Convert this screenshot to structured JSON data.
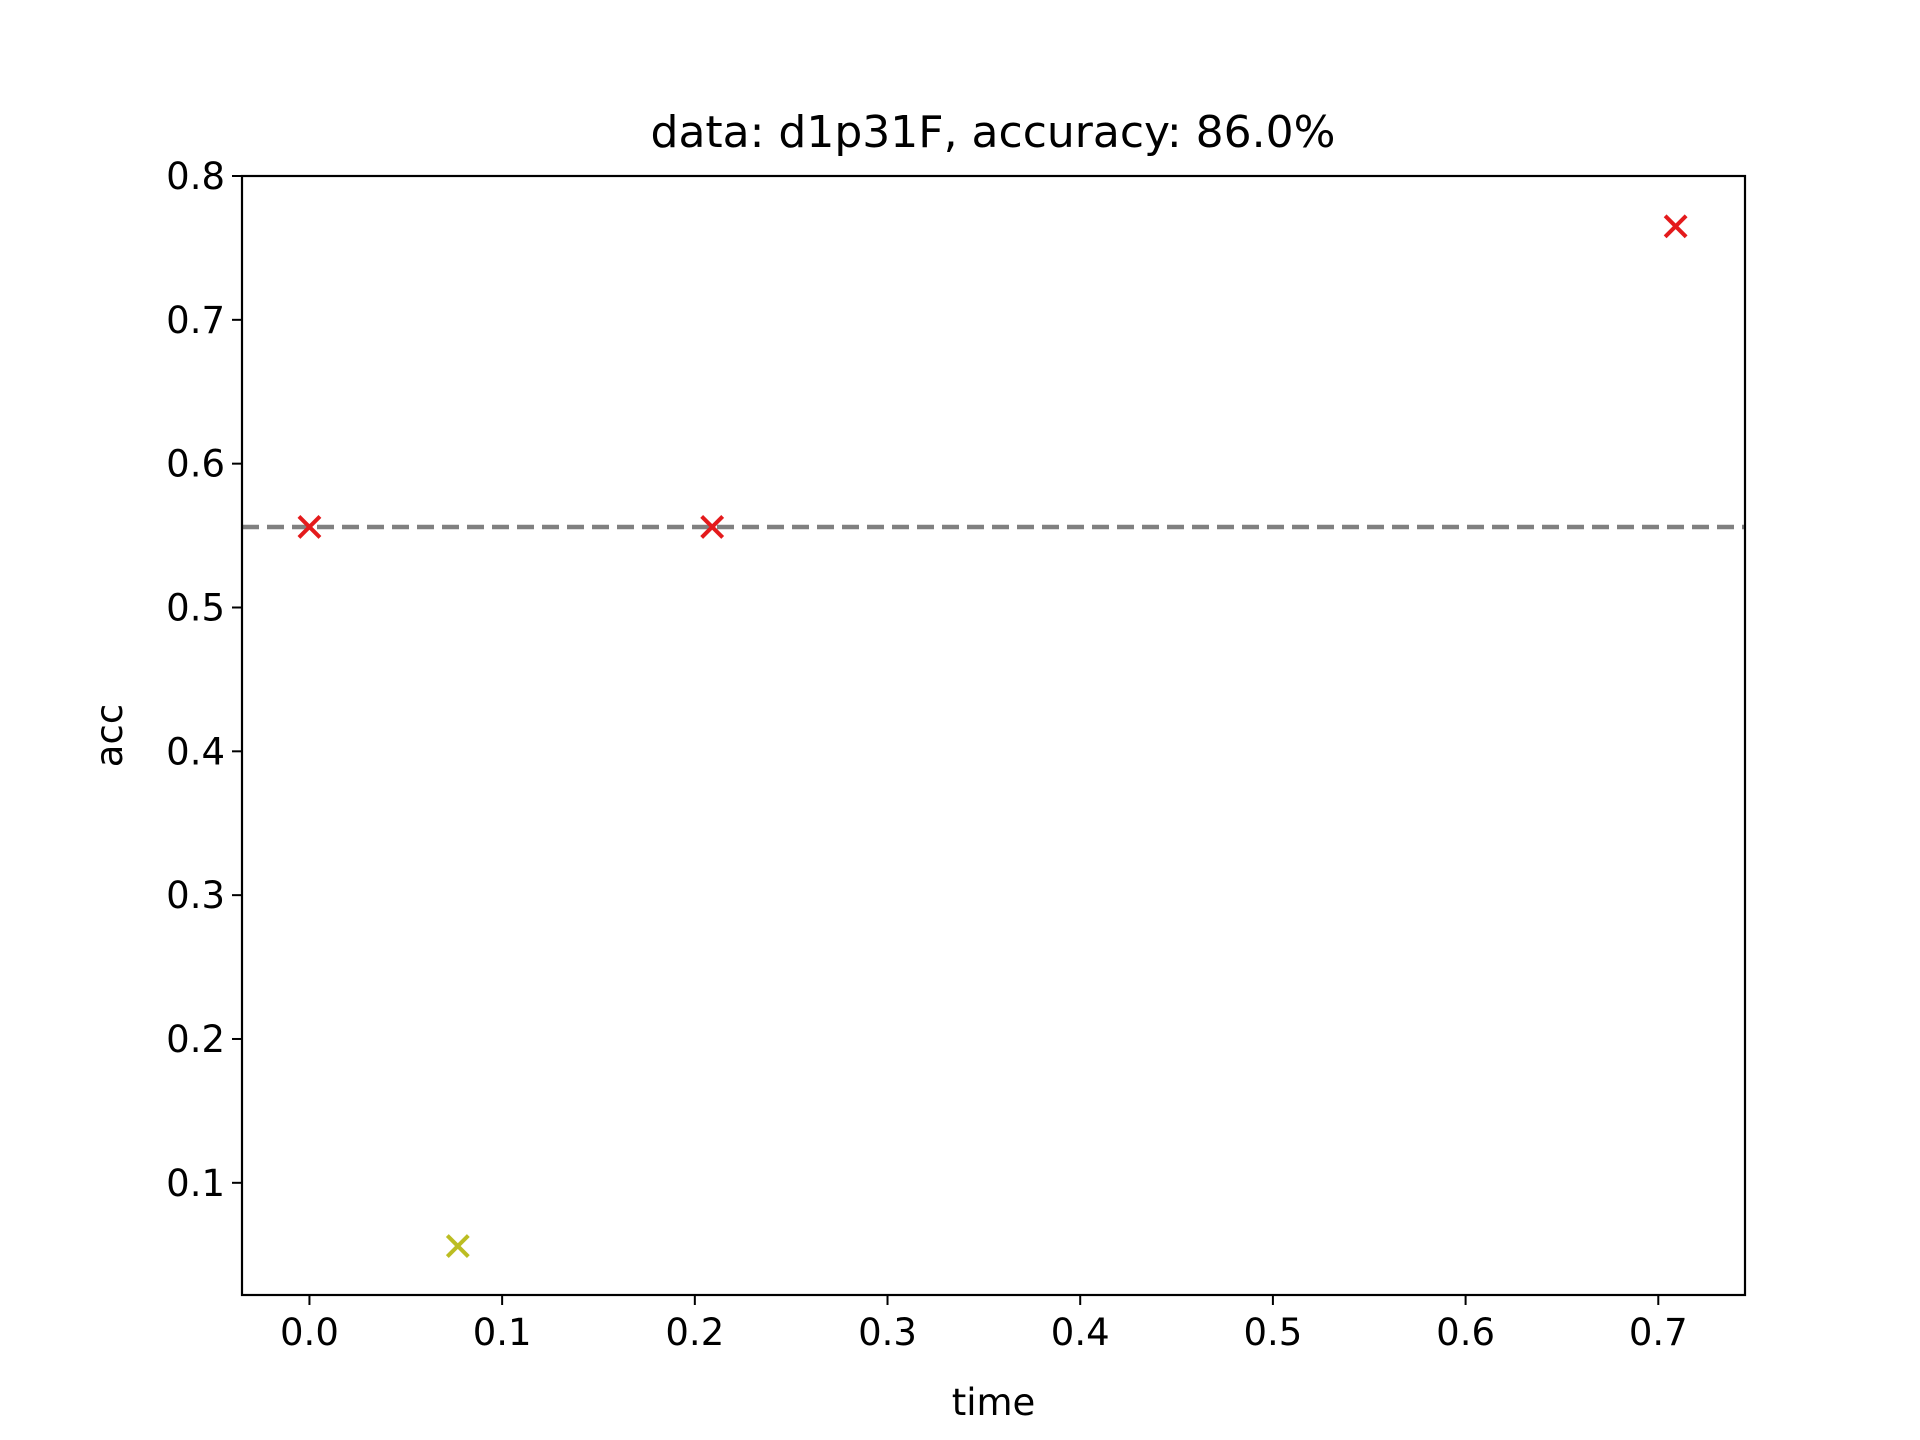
{
  "chart_data": {
    "type": "scatter",
    "title": "data: d1p31F, accuracy: 86.0%",
    "xlabel": "time",
    "ylabel": "acc",
    "xlim": [
      -0.035,
      0.745
    ],
    "ylim": [
      0.022,
      0.8
    ],
    "xticks": [
      "0.0",
      "0.1",
      "0.2",
      "0.3",
      "0.4",
      "0.5",
      "0.6",
      "0.7"
    ],
    "yticks": [
      "0.1",
      "0.2",
      "0.3",
      "0.4",
      "0.5",
      "0.6",
      "0.7",
      "0.8"
    ],
    "grid": false,
    "marker": "x",
    "points": [
      {
        "x": 0.0,
        "y": 0.556,
        "color": "#e41a1c"
      },
      {
        "x": 0.077,
        "y": 0.056,
        "color": "#bcbd22"
      },
      {
        "x": 0.209,
        "y": 0.556,
        "color": "#e41a1c"
      },
      {
        "x": 0.709,
        "y": 0.765,
        "color": "#e41a1c"
      }
    ],
    "reference_line": {
      "y": 0.556,
      "style": "dashed",
      "color": "#808080"
    }
  }
}
